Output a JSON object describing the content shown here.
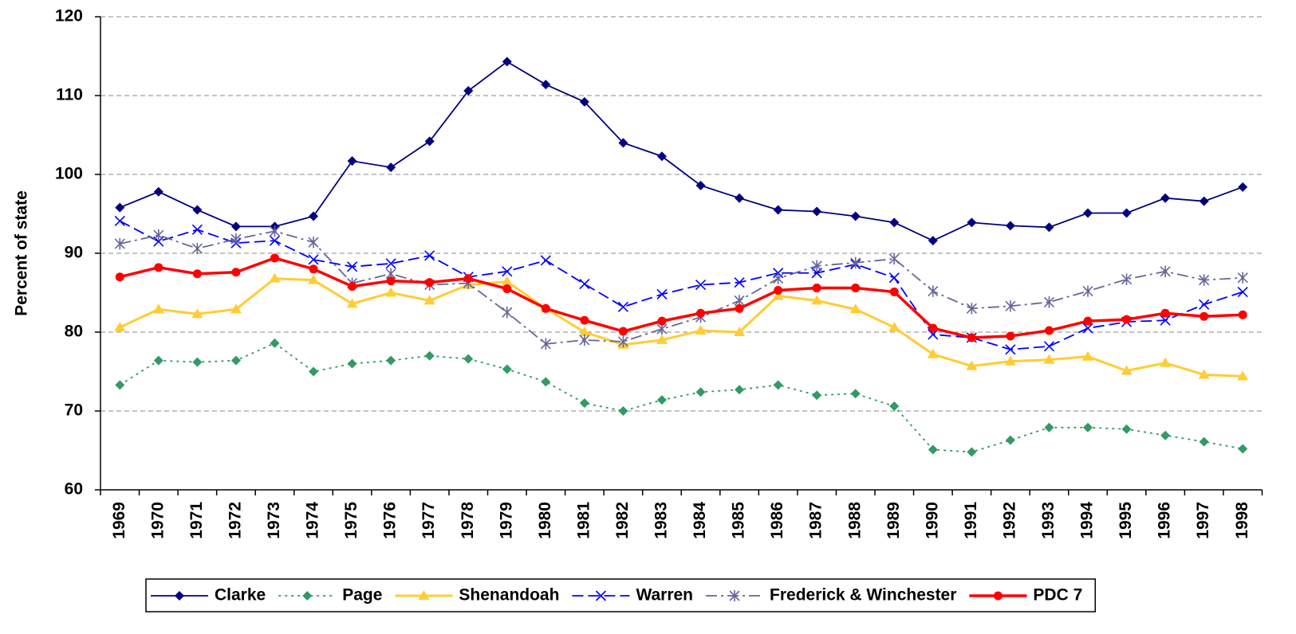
{
  "chart_data": {
    "type": "line",
    "y_label": "Percent of state",
    "categories": [
      "1969",
      "1970",
      "1971",
      "1972",
      "1973",
      "1974",
      "1975",
      "1976",
      "1977",
      "1978",
      "1979",
      "1980",
      "1981",
      "1982",
      "1983",
      "1984",
      "1985",
      "1986",
      "1987",
      "1988",
      "1989",
      "1990",
      "1991",
      "1992",
      "1993",
      "1994",
      "1995",
      "1996",
      "1997",
      "1998"
    ],
    "ylim": [
      60,
      120
    ],
    "yticks": [
      60,
      70,
      80,
      90,
      100,
      110,
      120
    ],
    "grid": true,
    "legend": "bottom",
    "series": [
      {
        "name": "Clarke",
        "color": "#000080",
        "marker": "diamond",
        "dash": "solid",
        "values": [
          95.8,
          97.8,
          95.5,
          93.4,
          93.4,
          94.7,
          101.7,
          100.9,
          104.2,
          110.6,
          114.3,
          111.4,
          109.2,
          104.0,
          102.3,
          98.6,
          97.0,
          95.5,
          95.3,
          94.7,
          93.9,
          91.6,
          93.9,
          93.5,
          93.3,
          95.1,
          95.1,
          97.0,
          96.6,
          98.4
        ]
      },
      {
        "name": "Page",
        "color": "#339966",
        "marker": "diamond",
        "dash": "dotted",
        "values": [
          73.3,
          76.4,
          76.2,
          76.4,
          78.6,
          75.0,
          76.0,
          76.4,
          77.0,
          76.6,
          75.3,
          73.7,
          71.0,
          70.0,
          71.4,
          72.4,
          72.7,
          73.3,
          72.0,
          72.2,
          70.6,
          65.1,
          64.8,
          66.3,
          67.9,
          67.9,
          67.7,
          66.9,
          66.1,
          65.2
        ]
      },
      {
        "name": "Shenandoah",
        "color": "#FFCC33",
        "marker": "triangle",
        "dash": "solid",
        "values": [
          80.6,
          82.9,
          82.3,
          82.9,
          86.8,
          86.6,
          83.6,
          85.0,
          84.0,
          86.0,
          86.4,
          83.0,
          80.0,
          78.4,
          79.0,
          80.2,
          80.0,
          84.6,
          84.0,
          82.9,
          80.6,
          77.2,
          75.7,
          76.3,
          76.5,
          76.9,
          75.1,
          76.1,
          74.6,
          74.4
        ]
      },
      {
        "name": "Warren",
        "color": "#0000FF",
        "marker": "x",
        "dash": "dashed",
        "values": [
          94.1,
          91.5,
          93.0,
          91.3,
          91.6,
          89.2,
          88.3,
          88.7,
          89.7,
          87.0,
          87.7,
          89.1,
          86.1,
          83.2,
          84.8,
          86.0,
          86.3,
          87.5,
          87.5,
          88.6,
          86.9,
          79.7,
          79.3,
          77.8,
          78.2,
          80.5,
          81.3,
          81.5,
          83.5,
          85.1
        ]
      },
      {
        "name": "Frederick & Winchester",
        "color": "#666699",
        "marker": "star",
        "dash": "dashdot",
        "values": [
          91.2,
          92.3,
          90.6,
          91.8,
          92.8,
          91.4,
          86.2,
          87.4,
          86.0,
          86.2,
          82.5,
          78.5,
          79.0,
          78.8,
          80.4,
          81.9,
          84.0,
          86.8,
          88.4,
          88.8,
          89.3,
          85.2,
          83.0,
          83.3,
          83.8,
          85.2,
          86.7,
          87.7,
          86.6,
          86.9
        ]
      },
      {
        "name": "PDC 7",
        "color": "#FF0000",
        "marker": "circle",
        "dash": "solid",
        "values": [
          87.0,
          88.2,
          87.4,
          87.6,
          89.4,
          88.0,
          85.8,
          86.5,
          86.3,
          86.8,
          85.5,
          83.0,
          81.5,
          80.1,
          81.4,
          82.4,
          83.0,
          85.3,
          85.6,
          85.6,
          85.1,
          80.5,
          79.3,
          79.5,
          80.2,
          81.4,
          81.6,
          82.4,
          82.0,
          82.2
        ]
      }
    ]
  }
}
